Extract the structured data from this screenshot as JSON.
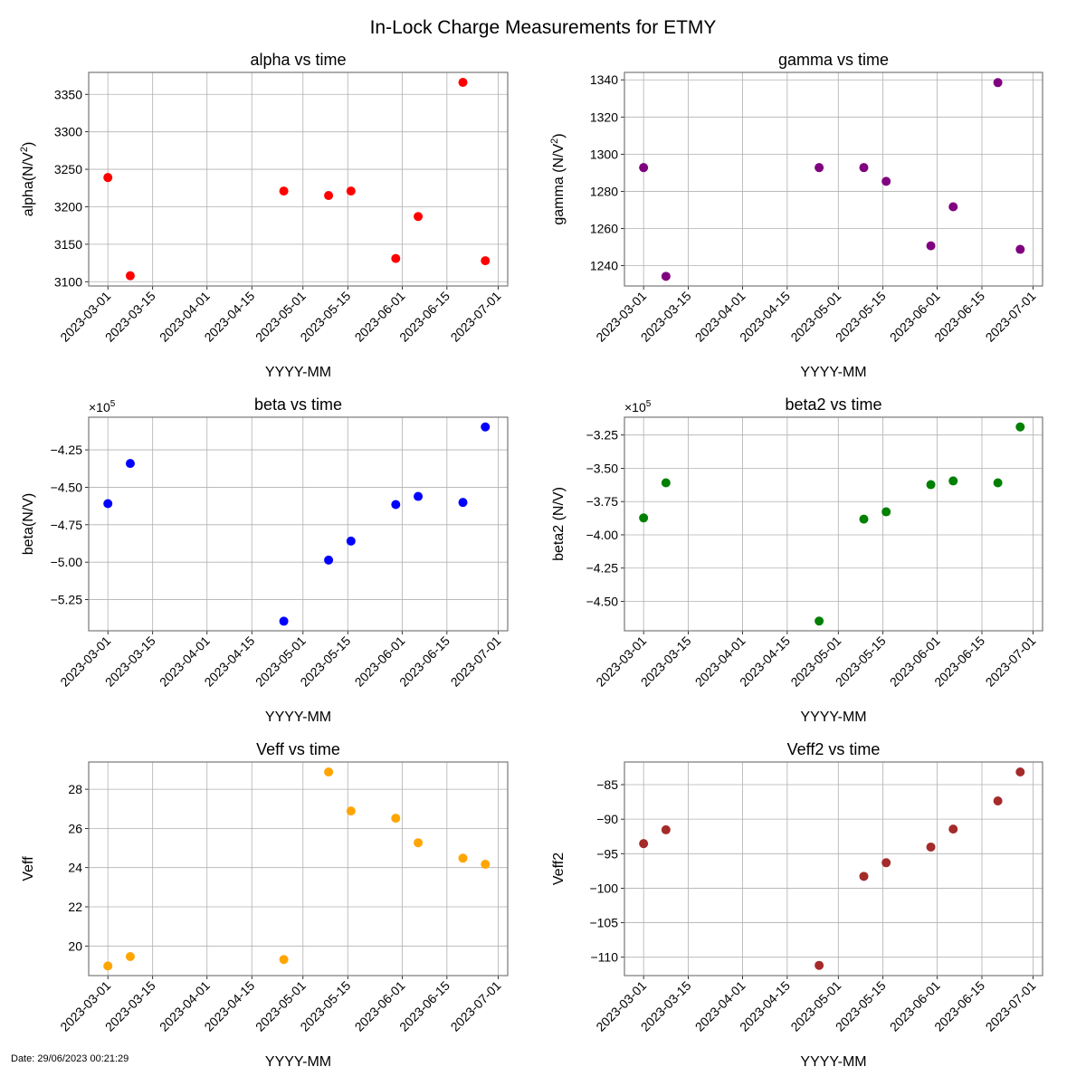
{
  "figure": {
    "suptitle": "In-Lock Charge Measurements for ETMY",
    "datestamp": "Date: 29/06/2023 00:21:29"
  },
  "chart_data": [
    {
      "type": "scatter",
      "title": "alpha vs time",
      "xlabel": "YYYY-MM",
      "ylabel": "alpha(N/V²)",
      "ylabel_parts": [
        "alpha(N/V",
        "2",
        ")"
      ],
      "color": "#ff0000",
      "offset_label": "",
      "x": [
        "2023-03-01",
        "2023-03-08",
        "2023-04-25",
        "2023-05-09",
        "2023-05-16",
        "2023-05-30",
        "2023-06-06",
        "2023-06-20",
        "2023-06-27"
      ],
      "y": [
        3239,
        3108,
        3221,
        3215,
        3221,
        3131,
        3187,
        3366,
        3128
      ],
      "xlim": [
        "2023-02-23",
        "2023-07-04"
      ],
      "ylim": [
        3094.3,
        3379.3
      ],
      "xticks": [
        "2023-03-01",
        "2023-03-15",
        "2023-04-01",
        "2023-04-15",
        "2023-05-01",
        "2023-05-15",
        "2023-06-01",
        "2023-06-15",
        "2023-07-01"
      ],
      "yticks": [
        3100,
        3150,
        3200,
        3250,
        3300,
        3350
      ],
      "ytick_labels": [
        "3100",
        "3150",
        "3200",
        "3250",
        "3300",
        "3350"
      ],
      "grid": true
    },
    {
      "type": "scatter",
      "title": "gamma vs time",
      "xlabel": "YYYY-MM",
      "ylabel": "gamma (N/V²)",
      "ylabel_parts": [
        "gamma (N/V",
        "2",
        ")"
      ],
      "color": "#800080",
      "offset_label": "",
      "x": [
        "2023-03-01",
        "2023-03-08",
        "2023-04-25",
        "2023-05-09",
        "2023-05-16",
        "2023-05-30",
        "2023-06-06",
        "2023-06-20",
        "2023-06-27"
      ],
      "y": [
        1292.8,
        1234.3,
        1292.8,
        1292.8,
        1285.4,
        1250.7,
        1271.7,
        1338.5,
        1248.8
      ],
      "xlim": [
        "2023-02-23",
        "2023-07-04"
      ],
      "ylim": [
        1229.1,
        1344.0
      ],
      "xticks": [
        "2023-03-01",
        "2023-03-15",
        "2023-04-01",
        "2023-04-15",
        "2023-05-01",
        "2023-05-15",
        "2023-06-01",
        "2023-06-15",
        "2023-07-01"
      ],
      "yticks": [
        1240,
        1260,
        1280,
        1300,
        1320,
        1340
      ],
      "ytick_labels": [
        "1240",
        "1260",
        "1280",
        "1300",
        "1320",
        "1340"
      ],
      "grid": true
    },
    {
      "type": "scatter",
      "title": "beta vs time",
      "xlabel": "YYYY-MM",
      "ylabel": "beta(N/V)",
      "ylabel_parts": [
        "beta(N/V)",
        "",
        ""
      ],
      "color": "#0000ff",
      "offset_label": "×10⁵",
      "offset_parts": [
        "×10",
        "5"
      ],
      "scale": 100000,
      "x": [
        "2023-03-01",
        "2023-03-08",
        "2023-04-25",
        "2023-05-09",
        "2023-05-16",
        "2023-05-30",
        "2023-06-06",
        "2023-06-20",
        "2023-06-27"
      ],
      "y": [
        -460900,
        -434100,
        -539400,
        -498600,
        -485900,
        -461500,
        -456100,
        -460100,
        -409700
      ],
      "xlim": [
        "2023-02-23",
        "2023-07-04"
      ],
      "ylim": [
        -545800,
        -403200
      ],
      "xticks": [
        "2023-03-01",
        "2023-03-15",
        "2023-04-01",
        "2023-04-15",
        "2023-05-01",
        "2023-05-15",
        "2023-06-01",
        "2023-06-15",
        "2023-07-01"
      ],
      "yticks": [
        -525000,
        -500000,
        -475000,
        -450000,
        -425000
      ],
      "ytick_labels": [
        "−5.25",
        "−5.00",
        "−4.75",
        "−4.50",
        "−4.25"
      ],
      "grid": true
    },
    {
      "type": "scatter",
      "title": "beta2 vs time",
      "xlabel": "YYYY-MM",
      "ylabel": "beta2 (N/V)",
      "ylabel_parts": [
        "beta2 (N/V)",
        "",
        ""
      ],
      "color": "#008000",
      "offset_label": "×10⁵",
      "offset_parts": [
        "×10",
        "5"
      ],
      "scale": 100000,
      "x": [
        "2023-03-01",
        "2023-03-08",
        "2023-04-25",
        "2023-05-09",
        "2023-05-16",
        "2023-05-30",
        "2023-06-06",
        "2023-06-20",
        "2023-06-27"
      ],
      "y": [
        -387300,
        -360900,
        -464800,
        -388200,
        -382700,
        -362300,
        -359500,
        -360900,
        -318900
      ],
      "xlim": [
        "2023-02-23",
        "2023-07-04"
      ],
      "ylim": [
        -472100,
        -311600
      ],
      "xticks": [
        "2023-03-01",
        "2023-03-15",
        "2023-04-01",
        "2023-04-15",
        "2023-05-01",
        "2023-05-15",
        "2023-06-01",
        "2023-06-15",
        "2023-07-01"
      ],
      "yticks": [
        -450000,
        -425000,
        -400000,
        -375000,
        -350000,
        -325000
      ],
      "ytick_labels": [
        "−4.50",
        "−4.25",
        "−4.00",
        "−3.75",
        "−3.50",
        "−3.25"
      ],
      "grid": true
    },
    {
      "type": "scatter",
      "title": "Veff vs time",
      "xlabel": "YYYY-MM",
      "ylabel": "Veff",
      "ylabel_parts": [
        "Veff",
        "",
        ""
      ],
      "color": "#ffa500",
      "offset_label": "",
      "x": [
        "2023-03-01",
        "2023-03-08",
        "2023-04-25",
        "2023-05-09",
        "2023-05-16",
        "2023-05-30",
        "2023-06-06",
        "2023-06-20",
        "2023-06-27"
      ],
      "y": [
        18.98,
        19.46,
        19.31,
        28.88,
        26.89,
        26.52,
        25.27,
        24.48,
        24.17
      ],
      "xlim": [
        "2023-02-23",
        "2023-07-04"
      ],
      "ylim": [
        18.49,
        29.39
      ],
      "xticks": [
        "2023-03-01",
        "2023-03-15",
        "2023-04-01",
        "2023-04-15",
        "2023-05-01",
        "2023-05-15",
        "2023-06-01",
        "2023-06-15",
        "2023-07-01"
      ],
      "yticks": [
        20,
        22,
        24,
        26,
        28
      ],
      "ytick_labels": [
        "20",
        "22",
        "24",
        "26",
        "28"
      ],
      "grid": true
    },
    {
      "type": "scatter",
      "title": "Veff2 vs time",
      "xlabel": "YYYY-MM",
      "ylabel": "Veff2",
      "ylabel_parts": [
        "Veff2",
        "",
        ""
      ],
      "color": "#a52a2a",
      "offset_label": "",
      "x": [
        "2023-03-01",
        "2023-03-08",
        "2023-04-25",
        "2023-05-09",
        "2023-05-16",
        "2023-05-30",
        "2023-06-06",
        "2023-06-20",
        "2023-06-27"
      ],
      "y": [
        -93.54,
        -91.54,
        -111.18,
        -98.28,
        -96.31,
        -94.04,
        -91.44,
        -87.36,
        -83.16
      ],
      "xlim": [
        "2023-02-23",
        "2023-07-04"
      ],
      "ylim": [
        -112.66,
        -81.72
      ],
      "xticks": [
        "2023-03-01",
        "2023-03-15",
        "2023-04-01",
        "2023-04-15",
        "2023-05-01",
        "2023-05-15",
        "2023-06-01",
        "2023-06-15",
        "2023-07-01"
      ],
      "yticks": [
        -110,
        -105,
        -100,
        -95,
        -90,
        -85
      ],
      "ytick_labels": [
        "−110",
        "−105",
        "−100",
        "−95",
        "−90",
        "−85"
      ],
      "grid": true
    }
  ]
}
